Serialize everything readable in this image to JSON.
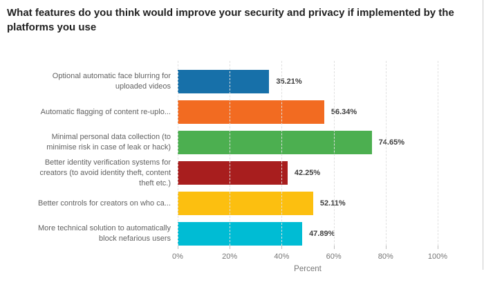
{
  "chart_data": {
    "type": "bar",
    "orientation": "horizontal",
    "title": "What features do you think would improve your security and privacy if implemented by the platforms you use",
    "categories": [
      "Optional automatic face blurring for uploaded videos",
      "Automatic flagging of content re-uplo...",
      "Minimal personal data collection (to minimise risk in case of leak or hack)",
      "Better identity verification systems for creators (to avoid identity theft, content theft etc.)",
      "Better controls for creators on who ca...",
      "More technical solution to automatically block nefarious users"
    ],
    "values": [
      35.21,
      56.34,
      74.65,
      42.25,
      52.11,
      47.89
    ],
    "value_labels": [
      "35.21%",
      "56.34%",
      "74.65%",
      "42.25%",
      "52.11%",
      "47.89%"
    ],
    "bar_colors": [
      "#1770A9",
      "#F26B21",
      "#4CAF50",
      "#A81E1E",
      "#FCBF10",
      "#00BCD4"
    ],
    "xlabel": "Percent",
    "ylabel": "",
    "x_ticks": [
      "0%",
      "20%",
      "40%",
      "60%",
      "80%",
      "100%"
    ],
    "xlim": [
      0,
      100
    ],
    "grid": "vertical-dashed",
    "legend": "none"
  },
  "colors": {
    "background": "#ffffff",
    "title_text": "#212121",
    "category_text": "#616161",
    "value_label_text": "#3d3d3d",
    "axis_text": "#757575",
    "gridline": "#e0e0e0",
    "frame_border": "#cccccc"
  }
}
